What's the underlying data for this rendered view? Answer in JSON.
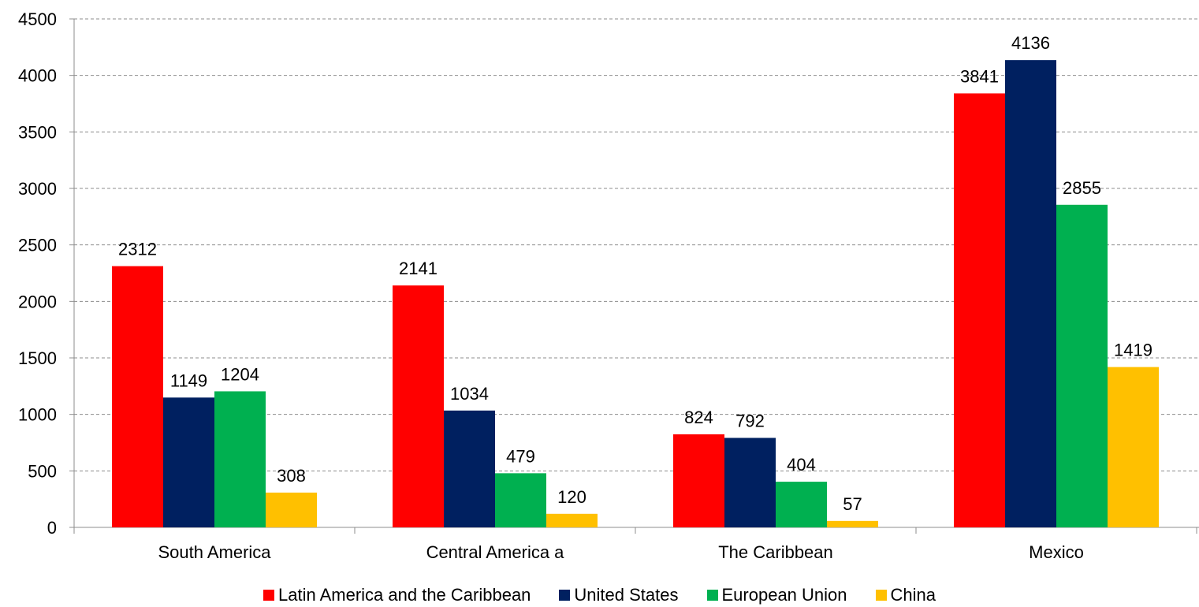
{
  "chart_data": {
    "type": "bar",
    "categories": [
      "South America",
      "Central America a",
      "The Caribbean",
      "Mexico"
    ],
    "series": [
      {
        "name": "Latin America and the Caribbean",
        "color": "#ff0000",
        "values": [
          2312,
          2141,
          824,
          3841
        ]
      },
      {
        "name": "United States",
        "color": "#002060",
        "values": [
          1149,
          1034,
          792,
          4136
        ]
      },
      {
        "name": "European Union",
        "color": "#00b050",
        "values": [
          1204,
          479,
          404,
          2855
        ]
      },
      {
        "name": "China",
        "color": "#ffc000",
        "values": [
          308,
          120,
          57,
          1419
        ]
      }
    ],
    "ylim": [
      0,
      4500
    ],
    "yticks": [
      0,
      500,
      1000,
      1500,
      2000,
      2500,
      3000,
      3500,
      4000,
      4500
    ],
    "grid": true,
    "legend_position": "bottom",
    "data_labels": true
  }
}
